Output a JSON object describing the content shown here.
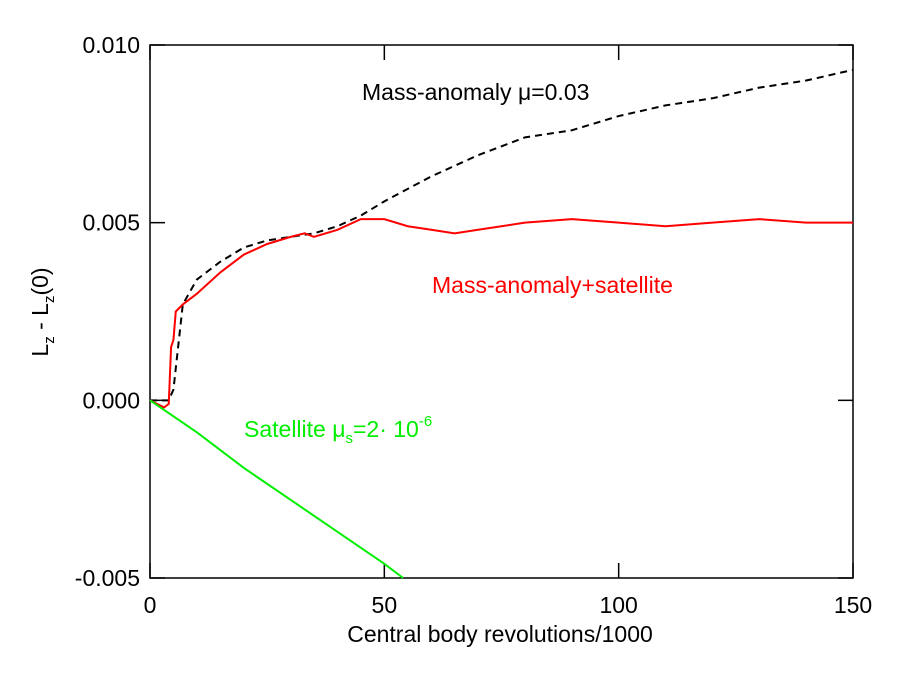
{
  "chart_data": {
    "type": "line",
    "xlabel": "Central body revolutions/1000",
    "ylabel": [
      "L",
      "z",
      " - L",
      "z",
      "(0)"
    ],
    "xlim": [
      0,
      150
    ],
    "xticks": [
      0,
      50,
      100,
      150
    ],
    "ylim": [
      -0.005,
      0.01
    ],
    "yticks": [
      {
        "value": -0.005,
        "label": "-0.005"
      },
      {
        "value": 0,
        "label": "0.000"
      },
      {
        "value": 0.005,
        "label": "0.005"
      },
      {
        "value": 0.01,
        "label": "0.010"
      }
    ],
    "annotations": [
      [
        "Mass-anomaly ",
        "μ",
        "=0.03"
      ],
      [
        "Mass-anomaly+satellite"
      ],
      [
        "Satellite ",
        "μ",
        "s",
        "=2· 10",
        "-6"
      ]
    ],
    "series": [
      {
        "color": "#000000",
        "dash": true,
        "x": [
          0,
          4,
          5,
          6,
          7,
          10,
          15,
          20,
          25,
          30,
          35,
          40,
          45,
          50,
          60,
          70,
          80,
          90,
          100,
          110,
          120,
          130,
          140,
          150
        ],
        "values": [
          0,
          0,
          0.0003,
          0.0015,
          0.0027,
          0.0034,
          0.0039,
          0.0043,
          0.0045,
          0.0046,
          0.0047,
          0.0049,
          0.0052,
          0.0056,
          0.0063,
          0.0069,
          0.0074,
          0.0076,
          0.008,
          0.0083,
          0.0085,
          0.0088,
          0.009,
          0.0093
        ]
      },
      {
        "color": "#ff0000",
        "dash": false,
        "x": [
          0,
          3,
          4,
          4.5,
          5,
          5.5,
          7,
          10,
          15,
          20,
          25,
          30,
          33,
          35,
          40,
          45,
          50,
          55,
          60,
          65,
          70,
          80,
          90,
          100,
          110,
          120,
          130,
          140,
          150
        ],
        "values": [
          0,
          -0.0002,
          -0.0001,
          0.0015,
          0.0017,
          0.0025,
          0.0027,
          0.003,
          0.0036,
          0.0041,
          0.0044,
          0.0046,
          0.0047,
          0.0046,
          0.0048,
          0.0051,
          0.0051,
          0.0049,
          0.0048,
          0.0047,
          0.0048,
          0.005,
          0.0051,
          0.005,
          0.0049,
          0.005,
          0.0051,
          0.005,
          0.005
        ]
      },
      {
        "color": "#00ee00",
        "dash": false,
        "x": [
          0,
          10,
          20,
          30,
          40,
          50,
          54
        ],
        "values": [
          0,
          -0.0009,
          -0.0019,
          -0.0028,
          -0.0037,
          -0.0046,
          -0.005
        ]
      }
    ]
  }
}
